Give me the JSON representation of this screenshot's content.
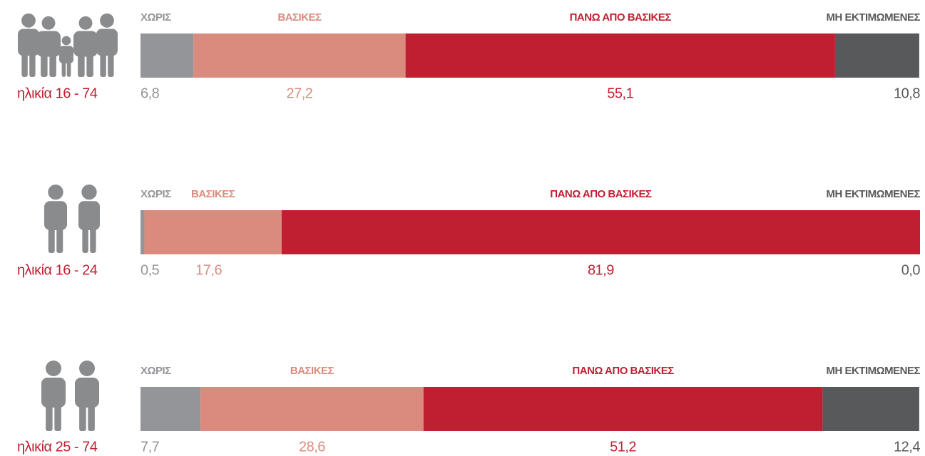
{
  "chart_data": {
    "type": "bar",
    "stacked": true,
    "orientation": "horizontal",
    "categories": [
      "ηλικία 16 - 74",
      "ηλικία 16 - 24",
      "ηλικία 25 - 74"
    ],
    "xlim": [
      0,
      100
    ],
    "series": [
      {
        "name": "ΧΩΡΙΣ",
        "color": "#939598",
        "values": [
          6.8,
          0.5,
          7.7
        ],
        "value_labels": [
          "6,8",
          "0,5",
          "7,7"
        ]
      },
      {
        "name": "ΒΑΣΙΚΕΣ",
        "color": "#db8b7e",
        "values": [
          27.2,
          17.6,
          28.6
        ],
        "value_labels": [
          "27,2",
          "17,6",
          "28,6"
        ]
      },
      {
        "name": "ΠΑΝΩ ΑΠΟ ΒΑΣΙΚΕΣ",
        "color": "#c01f32",
        "values": [
          55.1,
          81.9,
          51.2
        ],
        "value_labels": [
          "55,1",
          "81,9",
          "51,2"
        ]
      },
      {
        "name": "ΜΗ ΕΚΤΙΜΩΜΕΝΕΣ",
        "color": "#58595b",
        "values": [
          10.8,
          0.0,
          12.4
        ],
        "value_labels": [
          "10,8",
          "0,0",
          "12,4"
        ]
      }
    ]
  }
}
